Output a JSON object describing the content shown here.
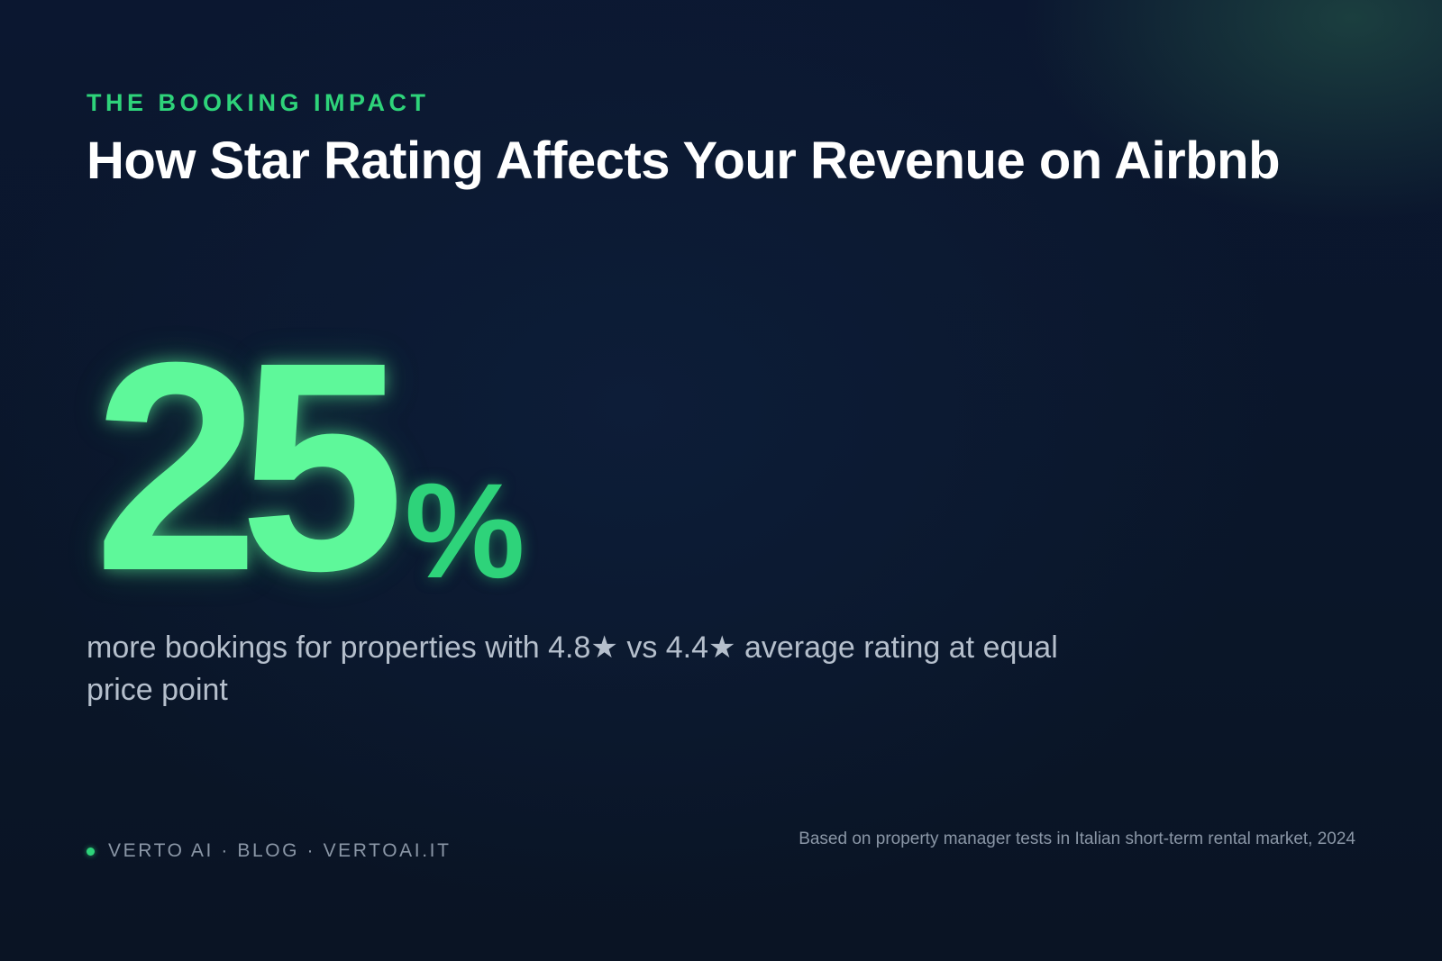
{
  "header": {
    "eyebrow": "THE BOOKING IMPACT",
    "title": "How Star Rating Affects Your Revenue on Airbnb"
  },
  "stat": {
    "value": "25",
    "unit": "%",
    "description": "more bookings for properties with 4.8★ vs 4.4★ average rating at equal price point"
  },
  "footer": {
    "brand": "VERTO AI · BLOG · VERTOAI.IT",
    "source": "Based on property manager tests in Italian short-term rental market, 2024"
  },
  "colors": {
    "accent": "#2ed37a",
    "accent_bright": "#5ef89a",
    "background": "#0b1730",
    "text_muted": "#b5bfcc"
  }
}
